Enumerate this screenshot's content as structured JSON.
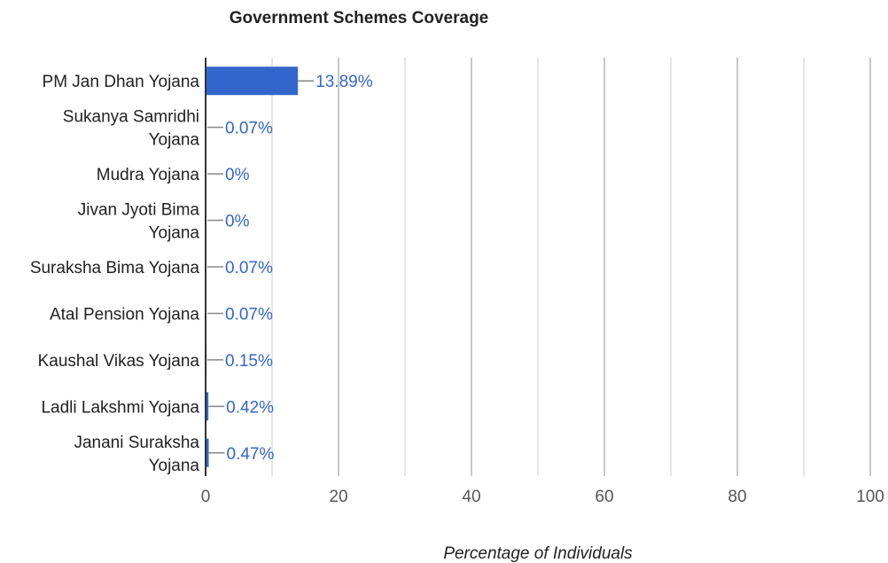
{
  "chart_data": {
    "type": "bar",
    "orientation": "horizontal",
    "title": "Government Schemes Coverage",
    "xlabel": "Percentage of Individuals",
    "ylabel": "",
    "xlim": [
      0,
      100
    ],
    "xticks": [
      0,
      20,
      40,
      60,
      80,
      100
    ],
    "grid": true,
    "legend": "none",
    "bar_color": "#3366cc",
    "categories": [
      "PM Jan Dhan Yojana",
      "Sukanya Samridhi Yojana",
      "Mudra Yojana",
      "Jivan Jyoti Bima Yojana",
      "Suraksha Bima Yojana",
      "Atal Pension Yojana",
      "Kaushal Vikas Yojana",
      "Ladli Lakshmi Yojana",
      "Janani Suraksha Yojana"
    ],
    "values": [
      13.89,
      0.07,
      0,
      0,
      0.07,
      0.07,
      0.15,
      0.42,
      0.47
    ],
    "data_labels": [
      "13.89%",
      "0.07%",
      "0%",
      "0%",
      "0.07%",
      "0.07%",
      "0.15%",
      "0.42%",
      "0.47%"
    ]
  }
}
